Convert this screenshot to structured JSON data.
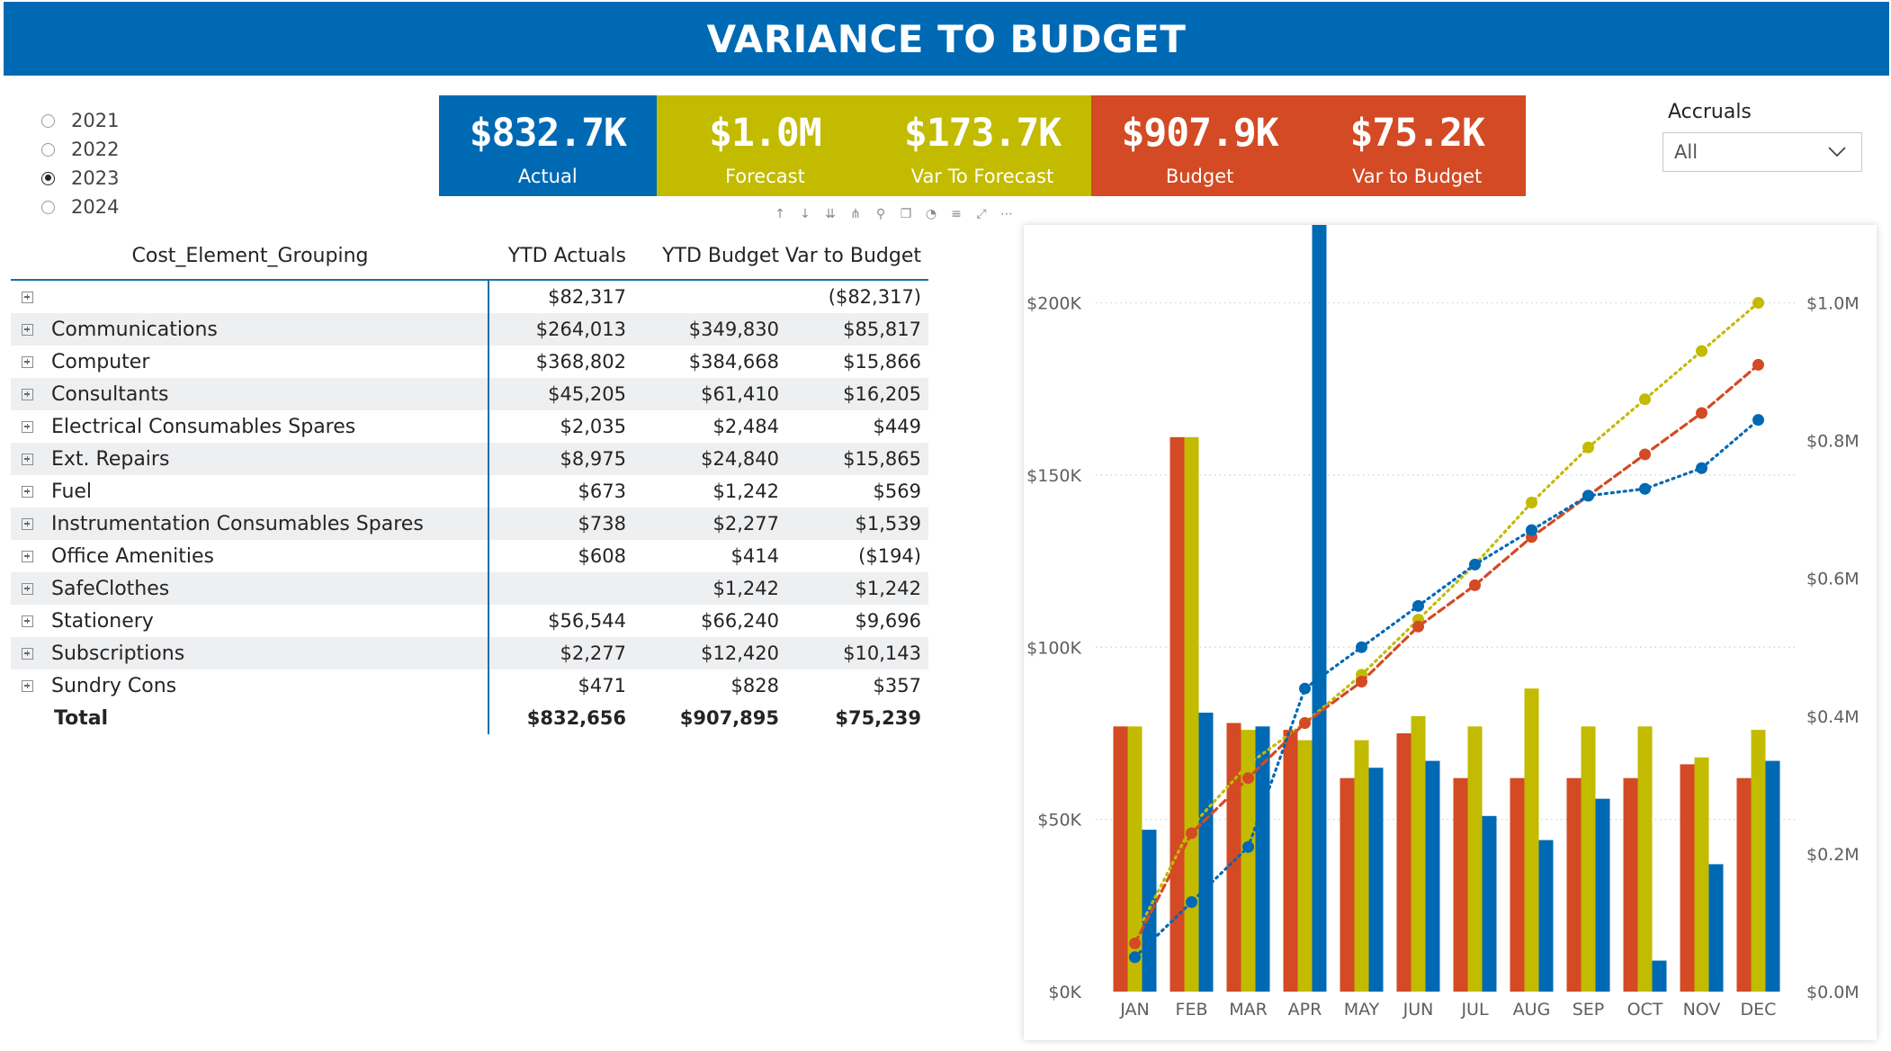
{
  "title": "VARIANCE TO BUDGET",
  "year_slicer": {
    "options": [
      {
        "label": "2021",
        "selected": false
      },
      {
        "label": "2022",
        "selected": false
      },
      {
        "label": "2023",
        "selected": true
      },
      {
        "label": "2024",
        "selected": false
      }
    ]
  },
  "kpis": [
    {
      "value": "$832.7K",
      "label": "Actual",
      "color": "#0069b4"
    },
    {
      "value": "$1.0M",
      "label": "Forecast",
      "color": "#c2bb00"
    },
    {
      "value": "$173.7K",
      "label": "Var To Forecast",
      "color": "#c2bb00"
    },
    {
      "value": "$907.9K",
      "label": "Budget",
      "color": "#d34a24"
    },
    {
      "value": "$75.2K",
      "label": "Var to Budget",
      "color": "#d34a24"
    }
  ],
  "accruals": {
    "title": "Accruals",
    "value": "All"
  },
  "toolbar_icons": [
    "arrow-up-icon",
    "arrow-down-icon",
    "double-arrow-down-icon",
    "drill-icon",
    "pin-icon",
    "copy-icon",
    "alert-icon",
    "filter-icon",
    "focus-mode-icon",
    "more-options-icon"
  ],
  "matrix": {
    "headers": [
      "Cost_Element_Grouping",
      "YTD Actuals",
      "YTD Budget",
      "Var to Budget"
    ],
    "rows": [
      {
        "name": "",
        "actual": "$82,317",
        "budget": "",
        "var": "($82,317)"
      },
      {
        "name": "Communications",
        "actual": "$264,013",
        "budget": "$349,830",
        "var": "$85,817"
      },
      {
        "name": "Computer",
        "actual": "$368,802",
        "budget": "$384,668",
        "var": "$15,866"
      },
      {
        "name": "Consultants",
        "actual": "$45,205",
        "budget": "$61,410",
        "var": "$16,205"
      },
      {
        "name": "Electrical Consumables Spares",
        "actual": "$2,035",
        "budget": "$2,484",
        "var": "$449"
      },
      {
        "name": "Ext. Repairs",
        "actual": "$8,975",
        "budget": "$24,840",
        "var": "$15,865"
      },
      {
        "name": "Fuel",
        "actual": "$673",
        "budget": "$1,242",
        "var": "$569"
      },
      {
        "name": "Instrumentation Consumables Spares",
        "actual": "$738",
        "budget": "$2,277",
        "var": "$1,539"
      },
      {
        "name": "Office Amenities",
        "actual": "$608",
        "budget": "$414",
        "var": "($194)"
      },
      {
        "name": "SafeClothes",
        "actual": "",
        "budget": "$1,242",
        "var": "$1,242"
      },
      {
        "name": "Stationery",
        "actual": "$56,544",
        "budget": "$66,240",
        "var": "$9,696"
      },
      {
        "name": "Subscriptions",
        "actual": "$2,277",
        "budget": "$12,420",
        "var": "$10,143"
      },
      {
        "name": "Sundry Cons",
        "actual": "$471",
        "budget": "$828",
        "var": "$357"
      }
    ],
    "total": {
      "name": "Total",
      "actual": "$832,656",
      "budget": "$907,895",
      "var": "$75,239"
    }
  },
  "chart_data": {
    "type": "bar",
    "categories": [
      "JAN",
      "FEB",
      "MAR",
      "APR",
      "MAY",
      "JUN",
      "JUL",
      "AUG",
      "SEP",
      "OCT",
      "NOV",
      "DEC"
    ],
    "y_left": {
      "ticks": [
        "$0K",
        "$50K",
        "$100K",
        "$150K",
        "$200K"
      ],
      "tick_values": [
        0,
        50000,
        100000,
        150000,
        200000
      ],
      "ylim": [
        0,
        220000
      ]
    },
    "y_right": {
      "ticks": [
        "$0.0M",
        "$0.2M",
        "$0.4M",
        "$0.6M",
        "$0.8M",
        "$1.0M"
      ],
      "tick_values": [
        0,
        0.2,
        0.4,
        0.6,
        0.8,
        1.0
      ],
      "ylim": [
        0,
        1.1
      ]
    },
    "grid": true,
    "bar_series": [
      {
        "color": "#d34a24",
        "values": [
          77000,
          161000,
          78000,
          76000,
          62000,
          75000,
          62000,
          62000,
          62000,
          62000,
          66000,
          62000
        ]
      },
      {
        "color": "#c2bb00",
        "values": [
          77000,
          161000,
          76000,
          73000,
          73000,
          80000,
          77000,
          88000,
          77000,
          77000,
          68000,
          76000
        ]
      },
      {
        "color": "#0069b4",
        "values": [
          47000,
          81000,
          77000,
          225000,
          65000,
          67000,
          51000,
          44000,
          56000,
          9000,
          37000,
          67000
        ]
      }
    ],
    "line_series": [
      {
        "color": "#c2bb00",
        "style": "dotted",
        "values": [
          0.08,
          0.24,
          0.33,
          0.39,
          0.46,
          0.54,
          0.62,
          0.71,
          0.79,
          0.86,
          0.93,
          1.0
        ]
      },
      {
        "color": "#d34a24",
        "style": "dashed",
        "values": [
          0.07,
          0.23,
          0.31,
          0.39,
          0.45,
          0.53,
          0.59,
          0.66,
          0.72,
          0.78,
          0.84,
          0.91
        ]
      },
      {
        "color": "#0069b4",
        "style": "dotted",
        "values": [
          0.05,
          0.13,
          0.21,
          0.44,
          0.5,
          0.56,
          0.62,
          0.67,
          0.72,
          0.73,
          0.76,
          0.83
        ]
      }
    ]
  }
}
